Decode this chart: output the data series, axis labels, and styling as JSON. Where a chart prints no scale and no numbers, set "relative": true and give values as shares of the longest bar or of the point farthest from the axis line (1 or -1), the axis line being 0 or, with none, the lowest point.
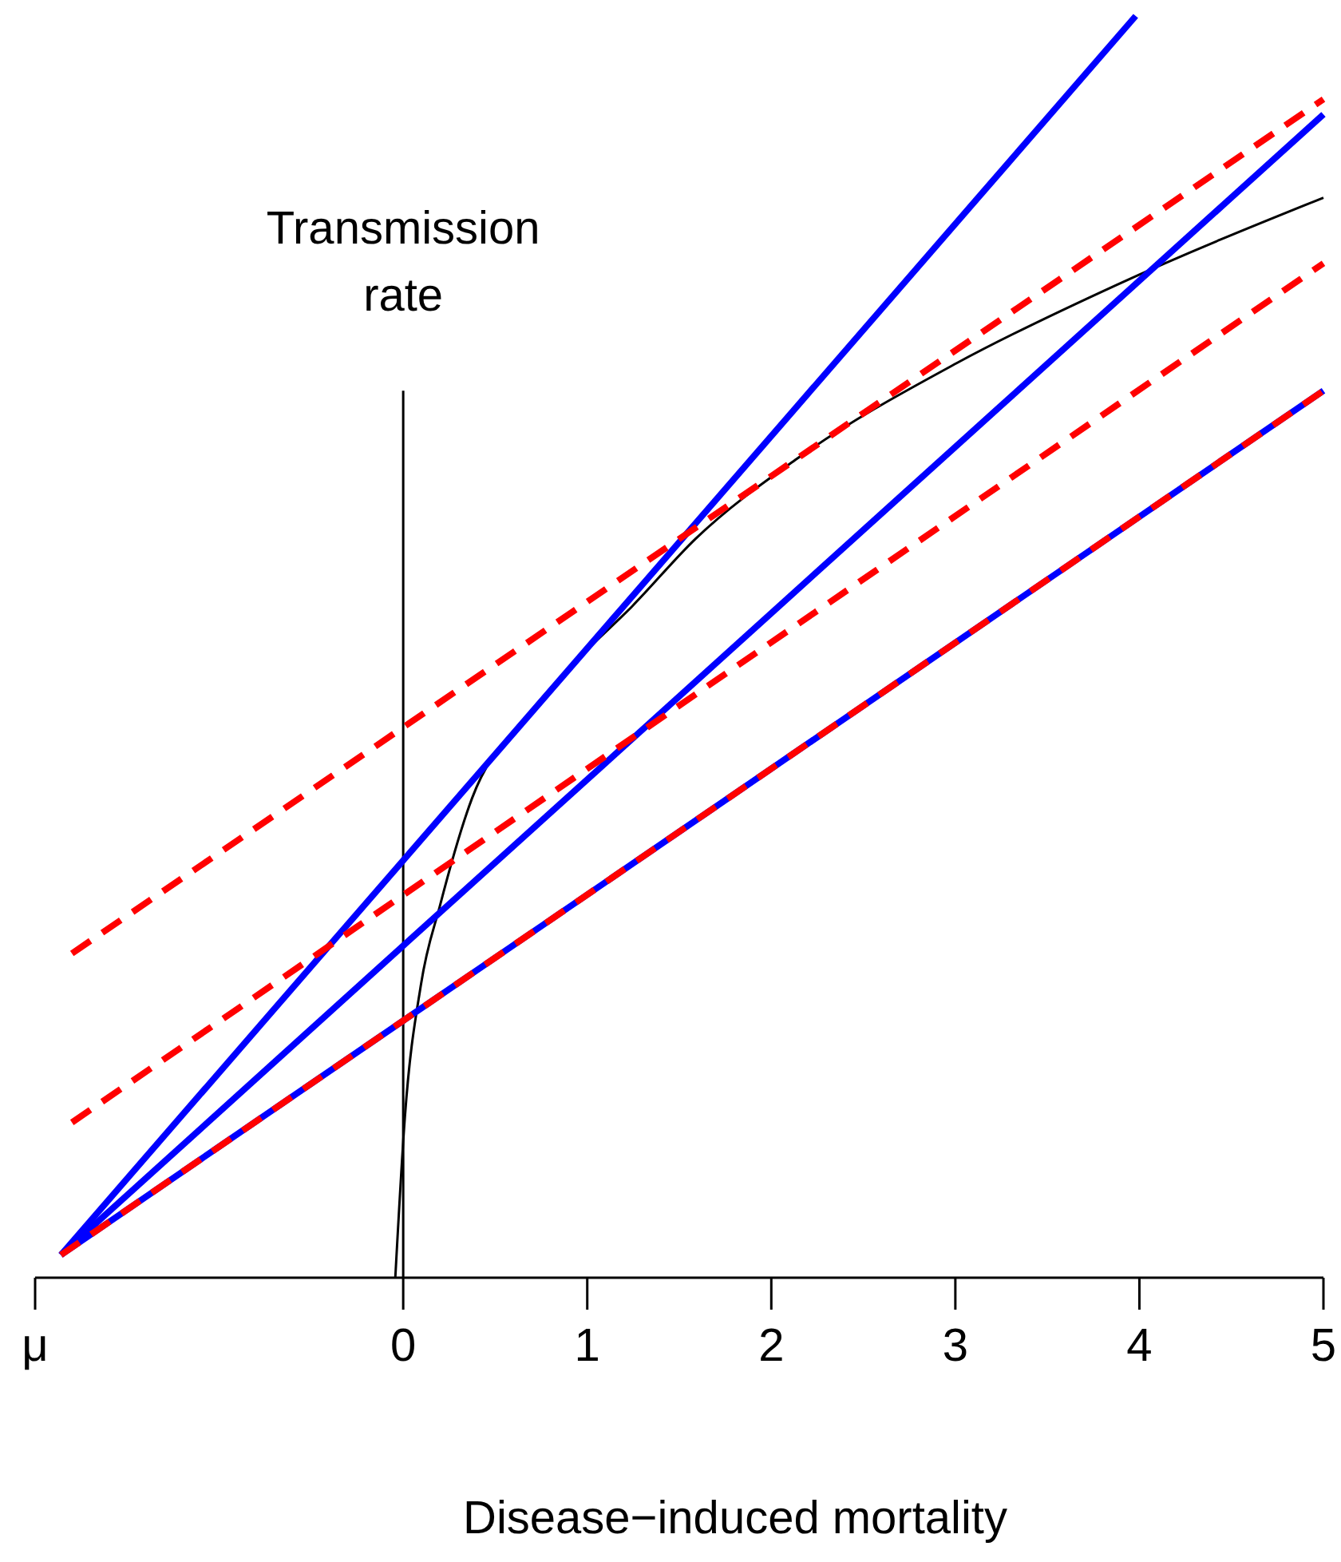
{
  "chart_data": {
    "type": "line",
    "relative": true,
    "xlabel": "Disease−induced mortality",
    "xlim": [
      -2,
      5
    ],
    "xticks": [
      {
        "value": -2,
        "label": "μ"
      },
      0,
      1,
      2,
      3,
      4,
      5
    ],
    "ref_lines": [
      {
        "axis": "x",
        "value": 0,
        "label": "Transmission rate",
        "color": "#000000"
      }
    ],
    "series": [
      {
        "color": "#000000",
        "line_style": "solid",
        "x": [
          -0.043,
          0.009,
          0.096,
          0.2,
          0.374,
          0.661,
          0.948,
          1.243,
          1.591,
          2.139,
          3.009,
          3.878,
          5
        ],
        "values": [
          0,
          0.127,
          0.232,
          0.295,
          0.38,
          0.443,
          0.49,
          0.532,
          0.586,
          0.649,
          0.725,
          0.787,
          0.856
        ]
      },
      {
        "color": "#0000ff",
        "line_style": "solid",
        "x": [
          -1.86,
          3.98
        ],
        "values": [
          0.018,
          1
        ]
      },
      {
        "color": "#0000ff",
        "line_style": "solid",
        "x": [
          -1.86,
          5
        ],
        "values": [
          0.018,
          0.922
        ]
      },
      {
        "color": "#0000ff",
        "line_style": "solid",
        "x": [
          -1.86,
          5
        ],
        "values": [
          0.018,
          0.703
        ]
      },
      {
        "color": "#ff0000",
        "line_style": "dashed",
        "x": [
          -1.8,
          5
        ],
        "values": [
          0.257,
          0.934
        ]
      },
      {
        "color": "#ff0000",
        "line_style": "dashed",
        "x": [
          -1.8,
          5
        ],
        "values": [
          0.123,
          0.804
        ]
      },
      {
        "color": "#ff0000",
        "line_style": "dashed",
        "x": [
          -1.86,
          5
        ],
        "values": [
          0.018,
          0.703
        ]
      }
    ]
  }
}
